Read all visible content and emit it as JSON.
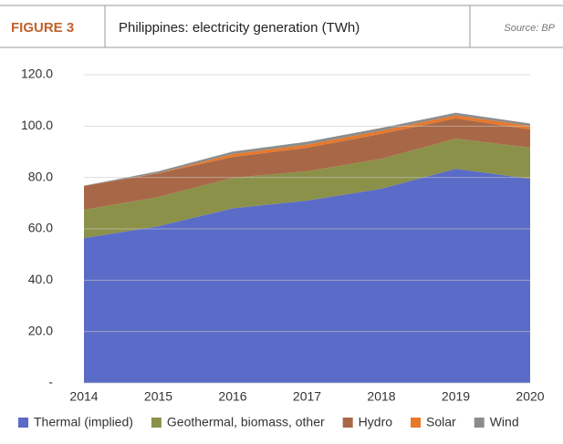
{
  "chart_data": {
    "type": "stacked_area",
    "figure_label": "FIGURE 3",
    "title": "Philippines: electricity generation (TWh)",
    "source": "Source: BP",
    "categories": [
      "2014",
      "2015",
      "2016",
      "2017",
      "2018",
      "2019",
      "2020"
    ],
    "series": [
      {
        "name": "Thermal (implied)",
        "color": "#5b6bc8",
        "values": [
          56.4,
          61,
          68,
          71,
          75.6,
          83.4,
          79.5
        ]
      },
      {
        "name": "Geothermal, biomass, other",
        "color": "#8b9148",
        "values": [
          11,
          11.4,
          11.9,
          11.4,
          11.7,
          11.7,
          12.1
        ]
      },
      {
        "name": "Hydro",
        "color": "#a86848",
        "values": [
          9.3,
          9.2,
          8.1,
          9.2,
          9.7,
          7.9,
          7.1
        ]
      },
      {
        "name": "Solar",
        "color": "#e8782a",
        "values": [
          0,
          0.1,
          1.1,
          1.2,
          1.2,
          1.2,
          1.4
        ]
      },
      {
        "name": "Wind",
        "color": "#8c8c8c",
        "values": [
          0.1,
          0.7,
          1.0,
          1.1,
          1.1,
          1.0,
          0.9
        ]
      }
    ],
    "ylim": [
      0,
      120
    ],
    "yticks": [
      {
        "value": 0,
        "label": "-"
      },
      {
        "value": 20,
        "label": "20.0"
      },
      {
        "value": 40,
        "label": "40.0"
      },
      {
        "value": 60,
        "label": "60.0"
      },
      {
        "value": 80,
        "label": "80.0"
      },
      {
        "value": 100,
        "label": "100.0"
      },
      {
        "value": 120,
        "label": "120.0"
      }
    ],
    "grid": true
  }
}
